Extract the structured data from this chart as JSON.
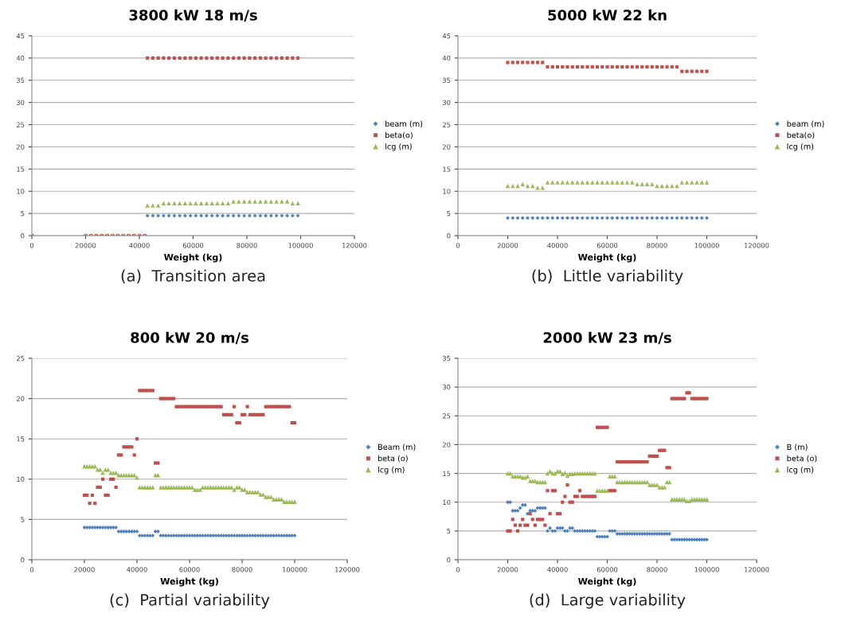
{
  "chart_data": [
    {
      "type": "scatter",
      "title": "3800 kW 18 m/s",
      "xlabel": "Weight (kg)",
      "annotations": [
        "(a)  Transition area"
      ],
      "xlim": [
        0,
        120000
      ],
      "xticks": [
        0,
        20000,
        40000,
        60000,
        80000,
        100000,
        120000
      ],
      "ylim": [
        0,
        45
      ],
      "yticks": [
        0,
        5,
        10,
        15,
        20,
        25,
        30,
        35,
        40,
        45
      ],
      "grid": "y",
      "legend": "right",
      "x": [
        0,
        20000,
        22000,
        24000,
        26000,
        28000,
        30000,
        32000,
        34000,
        36000,
        38000,
        40000,
        42000,
        43000,
        45000,
        47000,
        49000,
        51000,
        53000,
        55000,
        57000,
        59000,
        61000,
        63000,
        65000,
        67000,
        69000,
        71000,
        73000,
        75000,
        77000,
        79000,
        81000,
        83000,
        85000,
        87000,
        89000,
        91000,
        93000,
        95000,
        97000,
        99000
      ],
      "series": [
        {
          "name": "beam (m)",
          "color": "#4f81bd",
          "marker": "diamond",
          "values": [
            0,
            0,
            0,
            0,
            0,
            0,
            0,
            0,
            0,
            0,
            0,
            0,
            0,
            4.5,
            4.5,
            4.5,
            4.5,
            4.5,
            4.5,
            4.5,
            4.5,
            4.5,
            4.5,
            4.5,
            4.5,
            4.5,
            4.5,
            4.5,
            4.5,
            4.5,
            4.5,
            4.5,
            4.5,
            4.5,
            4.5,
            4.5,
            4.5,
            4.5,
            4.5,
            4.5,
            4.5,
            4.5
          ]
        },
        {
          "name": "beta(o)",
          "color": "#c0504d",
          "marker": "square",
          "values": [
            0,
            0,
            0,
            0,
            0,
            0,
            0,
            0,
            0,
            0,
            0,
            0,
            0,
            40,
            40,
            40,
            40,
            40,
            40,
            40,
            40,
            40,
            40,
            40,
            40,
            40,
            40,
            40,
            40,
            40,
            40,
            40,
            40,
            40,
            40,
            40,
            40,
            40,
            40,
            40,
            40,
            40
          ]
        },
        {
          "name": "lcg (m)",
          "color": "#9bbb59",
          "marker": "triangle",
          "values": [
            0,
            0,
            0,
            0,
            0,
            0,
            0,
            0,
            0,
            0,
            0,
            0,
            0,
            6.8,
            6.8,
            6.8,
            7.3,
            7.3,
            7.3,
            7.3,
            7.3,
            7.3,
            7.3,
            7.3,
            7.3,
            7.3,
            7.3,
            7.3,
            7.3,
            7.7,
            7.7,
            7.7,
            7.7,
            7.7,
            7.7,
            7.7,
            7.7,
            7.7,
            7.7,
            7.7,
            7.3,
            7.3
          ]
        }
      ]
    },
    {
      "type": "scatter",
      "title": "5000 kW 22 kn",
      "xlabel": "Weight (kg)",
      "annotations": [
        "(b)  Little variability"
      ],
      "xlim": [
        0,
        120000
      ],
      "xticks": [
        0,
        20000,
        40000,
        60000,
        80000,
        100000,
        120000
      ],
      "ylim": [
        0,
        45
      ],
      "yticks": [
        0,
        5,
        10,
        15,
        20,
        25,
        30,
        35,
        40,
        45
      ],
      "grid": "y",
      "legend": "right",
      "x": [
        20000,
        22000,
        24000,
        26000,
        28000,
        30000,
        32000,
        34000,
        36000,
        38000,
        40000,
        42000,
        44000,
        46000,
        48000,
        50000,
        52000,
        54000,
        56000,
        58000,
        60000,
        62000,
        64000,
        66000,
        68000,
        70000,
        72000,
        74000,
        76000,
        78000,
        80000,
        82000,
        84000,
        86000,
        88000,
        90000,
        92000,
        94000,
        96000,
        98000,
        100000
      ],
      "series": [
        {
          "name": "beam (m)",
          "color": "#4f81bd",
          "marker": "diamond",
          "values": [
            4,
            4,
            4,
            4,
            4,
            4,
            4,
            4,
            4,
            4,
            4,
            4,
            4,
            4,
            4,
            4,
            4,
            4,
            4,
            4,
            4,
            4,
            4,
            4,
            4,
            4,
            4,
            4,
            4,
            4,
            4,
            4,
            4,
            4,
            4,
            4,
            4,
            4,
            4,
            4,
            4
          ]
        },
        {
          "name": "beta(o)",
          "color": "#c0504d",
          "marker": "square",
          "values": [
            39,
            39,
            39,
            39,
            39,
            39,
            39,
            39,
            38,
            38,
            38,
            38,
            38,
            38,
            38,
            38,
            38,
            38,
            38,
            38,
            38,
            38,
            38,
            38,
            38,
            38,
            38,
            38,
            38,
            38,
            38,
            38,
            38,
            38,
            38,
            37,
            37,
            37,
            37,
            37,
            37
          ]
        },
        {
          "name": "lcg (m)",
          "color": "#9bbb59",
          "marker": "triangle",
          "values": [
            11.2,
            11.2,
            11.2,
            11.6,
            11.2,
            11.2,
            10.8,
            10.8,
            12,
            12,
            12,
            12,
            12,
            12,
            12,
            12,
            12,
            12,
            12,
            12,
            12,
            12,
            12,
            12,
            12,
            12,
            11.6,
            11.6,
            11.6,
            11.6,
            11.2,
            11.2,
            11.2,
            11.2,
            11.2,
            12,
            12,
            12,
            12,
            12,
            12
          ]
        }
      ]
    },
    {
      "type": "scatter",
      "title": "800 kW 20 m/s",
      "xlabel": "Weight (kg)",
      "annotations": [
        "(c)  Partial variability"
      ],
      "xlim": [
        0,
        120000
      ],
      "xticks": [
        0,
        20000,
        40000,
        60000,
        80000,
        100000,
        120000
      ],
      "ylim": [
        0,
        25
      ],
      "yticks": [
        0,
        5,
        10,
        15,
        20,
        25
      ],
      "grid": "y",
      "legend": "right",
      "x": [
        20000,
        21000,
        22000,
        23000,
        24000,
        25000,
        26000,
        27000,
        28000,
        29000,
        30000,
        31000,
        32000,
        33000,
        34000,
        35000,
        36000,
        37000,
        38000,
        39000,
        40000,
        41000,
        42000,
        43000,
        44000,
        45000,
        46000,
        47000,
        48000,
        49000,
        50000,
        51000,
        52000,
        53000,
        54000,
        55000,
        56000,
        57000,
        58000,
        59000,
        60000,
        61000,
        62000,
        63000,
        64000,
        65000,
        66000,
        67000,
        68000,
        69000,
        70000,
        71000,
        72000,
        73000,
        74000,
        75000,
        76000,
        77000,
        78000,
        79000,
        80000,
        81000,
        82000,
        83000,
        84000,
        85000,
        86000,
        87000,
        88000,
        89000,
        90000,
        91000,
        92000,
        93000,
        94000,
        95000,
        96000,
        97000,
        98000,
        99000,
        100000
      ],
      "series": [
        {
          "name": "Beam (m)",
          "color": "#4f81bd",
          "marker": "diamond",
          "values": [
            4,
            4,
            4,
            4,
            4,
            4,
            4,
            4,
            4,
            4,
            4,
            4,
            4,
            3.5,
            3.5,
            3.5,
            3.5,
            3.5,
            3.5,
            3.5,
            3.5,
            3,
            3,
            3,
            3,
            3,
            3,
            3.5,
            3.5,
            3,
            3,
            3,
            3,
            3,
            3,
            3,
            3,
            3,
            3,
            3,
            3,
            3,
            3,
            3,
            3,
            3,
            3,
            3,
            3,
            3,
            3,
            3,
            3,
            3,
            3,
            3,
            3,
            3,
            3,
            3,
            3,
            3,
            3,
            3,
            3,
            3,
            3,
            3,
            3,
            3,
            3,
            3,
            3,
            3,
            3,
            3,
            3,
            3,
            3,
            3,
            3
          ]
        },
        {
          "name": "beta (o)",
          "color": "#c0504d",
          "marker": "square",
          "values": [
            8,
            8,
            7,
            8,
            7,
            9,
            9,
            10,
            8,
            8,
            10,
            10,
            9,
            13,
            13,
            14,
            14,
            14,
            14,
            13,
            15,
            21,
            21,
            21,
            21,
            21,
            21,
            12,
            12,
            20,
            20,
            20,
            20,
            20,
            20,
            19,
            19,
            19,
            19,
            19,
            19,
            19,
            19,
            19,
            19,
            19,
            19,
            19,
            19,
            19,
            19,
            19,
            19,
            18,
            18,
            18,
            18,
            19,
            17,
            17,
            18,
            18,
            19,
            18,
            18,
            18,
            18,
            18,
            18,
            19,
            19,
            19,
            19,
            19,
            19,
            19,
            19,
            19,
            19,
            17,
            17
          ]
        },
        {
          "name": "lcg (m)",
          "color": "#9bbb59",
          "marker": "triangle",
          "values": [
            11.6,
            11.6,
            11.6,
            11.6,
            11.6,
            11.2,
            11.2,
            10.8,
            11.2,
            11.2,
            10.8,
            10.8,
            10.8,
            10.5,
            10.5,
            10.5,
            10.5,
            10.5,
            10.5,
            10.5,
            10.2,
            9,
            9,
            9,
            9,
            9,
            9,
            10.5,
            10.5,
            9,
            9,
            9,
            9,
            9,
            9,
            9,
            9,
            9,
            9,
            9,
            9,
            9,
            8.7,
            8.7,
            8.7,
            9,
            9,
            9,
            9,
            9,
            9,
            9,
            9,
            9,
            9,
            9,
            9,
            8.7,
            9,
            9,
            8.7,
            8.7,
            8.4,
            8.4,
            8.4,
            8.4,
            8.4,
            8.1,
            8.1,
            7.8,
            7.8,
            7.8,
            7.5,
            7.5,
            7.5,
            7.5,
            7.2,
            7.2,
            7.2,
            7.2,
            7.2
          ]
        }
      ]
    },
    {
      "type": "scatter",
      "title": "2000 kW 23 m/s",
      "xlabel": "Weight (kg)",
      "annotations": [
        "(d)  Large variability"
      ],
      "xlim": [
        0,
        120000
      ],
      "xticks": [
        0,
        20000,
        40000,
        60000,
        80000,
        100000,
        120000
      ],
      "ylim": [
        0,
        35
      ],
      "yticks": [
        0,
        5,
        10,
        15,
        20,
        25,
        30,
        35
      ],
      "grid": "y",
      "legend": "right",
      "x": [
        20000,
        21000,
        22000,
        23000,
        24000,
        25000,
        26000,
        27000,
        28000,
        29000,
        30000,
        31000,
        32000,
        33000,
        34000,
        35000,
        36000,
        37000,
        38000,
        39000,
        40000,
        41000,
        42000,
        43000,
        44000,
        45000,
        46000,
        47000,
        48000,
        49000,
        50000,
        51000,
        52000,
        53000,
        54000,
        55000,
        56000,
        57000,
        58000,
        59000,
        60000,
        61000,
        62000,
        63000,
        64000,
        65000,
        66000,
        67000,
        68000,
        69000,
        70000,
        71000,
        72000,
        73000,
        74000,
        75000,
        76000,
        77000,
        78000,
        79000,
        80000,
        81000,
        82000,
        83000,
        84000,
        85000,
        86000,
        87000,
        88000,
        89000,
        90000,
        91000,
        92000,
        93000,
        94000,
        95000,
        96000,
        97000,
        98000,
        99000,
        100000
      ],
      "series": [
        {
          "name": "B (m)",
          "color": "#4f81bd",
          "marker": "diamond",
          "values": [
            10,
            10,
            8.5,
            8.5,
            8.5,
            9,
            9.5,
            9.5,
            8,
            8.5,
            8.5,
            8.5,
            9,
            9,
            9,
            9,
            5,
            5.5,
            5,
            5,
            5.5,
            5.5,
            5.5,
            5,
            5,
            5.5,
            5.5,
            5,
            5,
            5,
            5,
            5,
            5,
            5,
            5,
            5,
            4,
            4,
            4,
            4,
            4,
            5,
            5,
            5,
            4.5,
            4.5,
            4.5,
            4.5,
            4.5,
            4.5,
            4.5,
            4.5,
            4.5,
            4.5,
            4.5,
            4.5,
            4.5,
            4.5,
            4.5,
            4.5,
            4.5,
            4.5,
            4.5,
            4.5,
            4.5,
            4.5,
            3.5,
            3.5,
            3.5,
            3.5,
            3.5,
            3.5,
            3.5,
            3.5,
            3.5,
            3.5,
            3.5,
            3.5,
            3.5,
            3.5,
            3.5
          ]
        },
        {
          "name": "beta (o)",
          "color": "#c0504d",
          "marker": "square",
          "values": [
            5,
            5,
            7,
            6,
            5,
            6,
            7,
            6,
            6,
            8,
            7,
            6,
            7,
            7,
            7,
            6,
            12,
            8,
            12,
            12,
            8,
            8,
            10,
            11,
            13,
            10,
            10,
            11,
            11,
            12,
            11,
            11,
            11,
            11,
            11,
            11,
            23,
            23,
            23,
            23,
            23,
            12,
            12,
            12,
            17,
            17,
            17,
            17,
            17,
            17,
            17,
            17,
            17,
            17,
            17,
            17,
            17,
            18,
            18,
            18,
            18,
            19,
            19,
            19,
            16,
            16,
            28,
            28,
            28,
            28,
            28,
            28,
            29,
            29,
            28,
            28,
            28,
            28,
            28,
            28,
            28
          ]
        },
        {
          "name": "lcg (m)",
          "color": "#9bbb59",
          "marker": "triangle",
          "values": [
            15,
            15,
            14.5,
            14.5,
            14.5,
            14.5,
            14.3,
            14.3,
            14.5,
            13.7,
            13.7,
            13.7,
            13.5,
            13.5,
            13.5,
            13.5,
            15,
            15.4,
            15,
            15,
            15.4,
            15.4,
            14.9,
            15.1,
            14.6,
            14.9,
            14.9,
            15,
            15,
            15,
            15,
            15,
            15,
            15,
            15,
            15,
            12,
            12,
            12,
            12,
            12,
            14.5,
            14.5,
            14.5,
            13.5,
            13.5,
            13.5,
            13.5,
            13.5,
            13.5,
            13.5,
            13.5,
            13.5,
            13.5,
            13.5,
            13.5,
            13.5,
            13,
            13,
            13,
            13,
            12.6,
            12.6,
            12.6,
            13.5,
            13.5,
            10.5,
            10.5,
            10.5,
            10.5,
            10.5,
            10.5,
            10.2,
            10.2,
            10.5,
            10.5,
            10.5,
            10.5,
            10.5,
            10.5,
            10.5
          ]
        }
      ]
    }
  ]
}
